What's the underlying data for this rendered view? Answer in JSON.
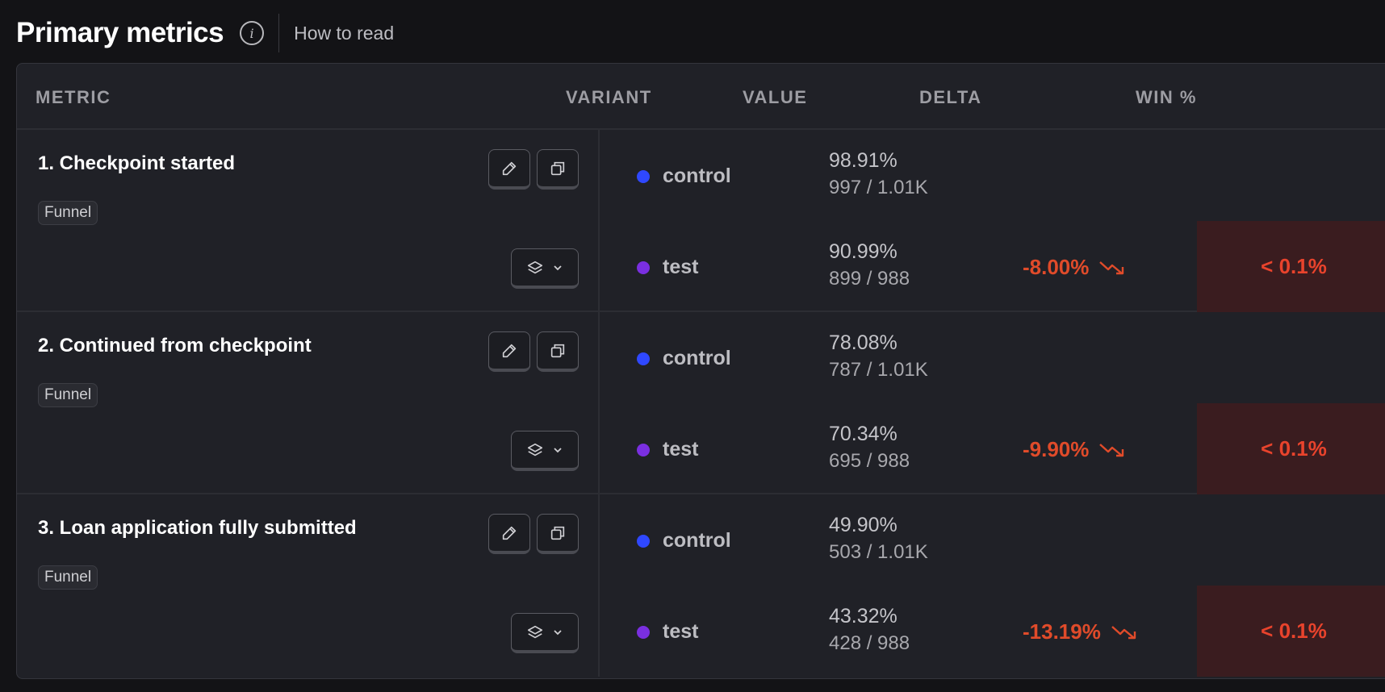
{
  "header": {
    "title": "Primary metrics",
    "info_icon": "info-icon",
    "how_to_read": "How to read"
  },
  "columns": {
    "metric": "METRIC",
    "variant": "VARIANT",
    "value": "VALUE",
    "delta": "DELTA",
    "win": "WIN %"
  },
  "colors": {
    "control_dot": "#2f48ff",
    "test_dot": "#7a2fe0",
    "negative": "#e04b2a",
    "win_bg": "#3a1c1f"
  },
  "metrics": [
    {
      "title": "1. Checkpoint started",
      "tag": "Funnel",
      "control": {
        "name": "control",
        "pct": "98.91%",
        "count": "997 / 1.01K"
      },
      "test": {
        "name": "test",
        "pct": "90.99%",
        "count": "899 / 988",
        "delta": "-8.00%",
        "win": "< 0.1%"
      }
    },
    {
      "title": "2. Continued from checkpoint",
      "tag": "Funnel",
      "control": {
        "name": "control",
        "pct": "78.08%",
        "count": "787 / 1.01K"
      },
      "test": {
        "name": "test",
        "pct": "70.34%",
        "count": "695 / 988",
        "delta": "-9.90%",
        "win": "< 0.1%"
      }
    },
    {
      "title": "3. Loan application fully submitted",
      "tag": "Funnel",
      "control": {
        "name": "control",
        "pct": "49.90%",
        "count": "503 / 1.01K"
      },
      "test": {
        "name": "test",
        "pct": "43.32%",
        "count": "428 / 988",
        "delta": "-13.19%",
        "win": "< 0.1%"
      }
    }
  ]
}
